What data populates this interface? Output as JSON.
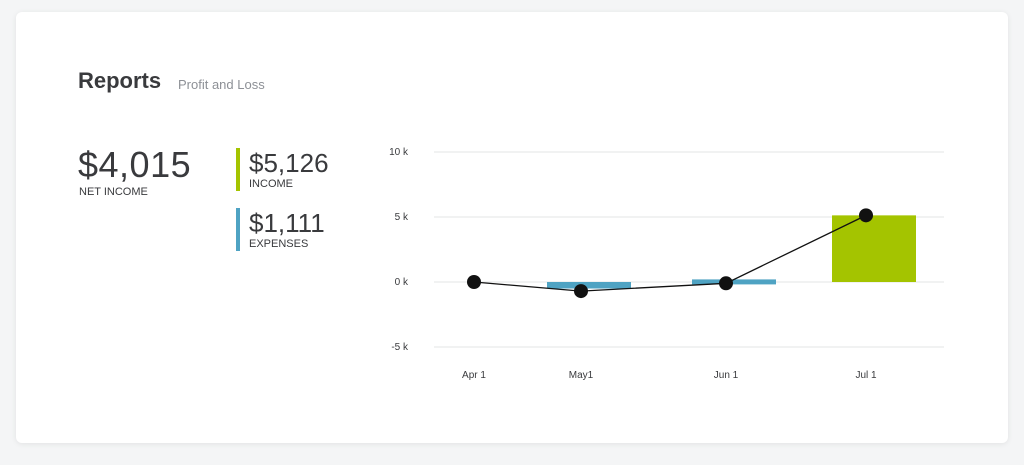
{
  "header": {
    "title": "Reports",
    "subtitle": "Profit and Loss"
  },
  "summary": {
    "net_income_value": "$4,015",
    "net_income_label": "NET INCOME",
    "income_value": "$5,126",
    "income_label": "INCOME",
    "expenses_value": "$1,111",
    "expenses_label": "EXPENSES"
  },
  "colors": {
    "income": "#a4c400",
    "expenses": "#4fa3c3",
    "line": "#111111",
    "grid": "#e3e4e6"
  },
  "chart_data": {
    "type": "bar",
    "categories": [
      "Apr 1",
      "May1",
      "Jun 1",
      "Jul 1"
    ],
    "y_tick_labels": [
      "10 k",
      "5 k",
      "0 k",
      "-5 k"
    ],
    "y_ticks": [
      10000,
      5000,
      0,
      -5000
    ],
    "ylim": [
      -5000,
      10000
    ],
    "series": [
      {
        "type": "bar",
        "color_key": "expenses",
        "values": [
          0,
          -500,
          0,
          0
        ]
      },
      {
        "type": "bar",
        "color_key": "expenses",
        "values": [
          0,
          0,
          200,
          0
        ]
      },
      {
        "type": "bar",
        "color_key": "income",
        "values": [
          0,
          0,
          0,
          5126
        ]
      },
      {
        "type": "line",
        "color_key": "line",
        "values": [
          0,
          -700,
          -100,
          5126
        ]
      }
    ],
    "grid": true,
    "legend": "none"
  }
}
